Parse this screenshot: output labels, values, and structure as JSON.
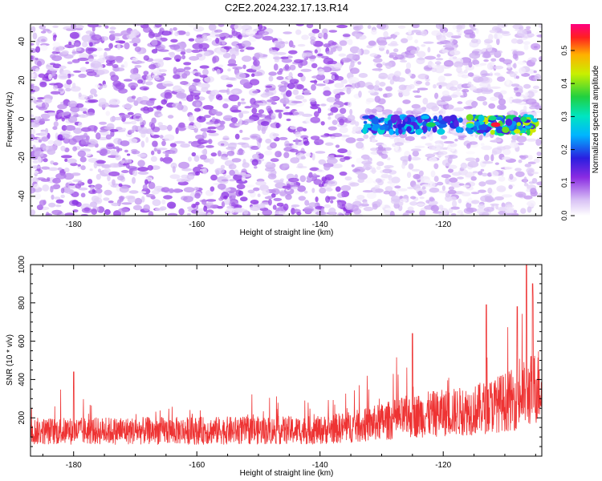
{
  "title": "C2E2.2024.232.17.13.R14",
  "chart_data": [
    {
      "type": "heatmap",
      "xlabel": "Height of straight line (km)",
      "ylabel": "Frequency (Hz)",
      "xlim": [
        -187,
        -104
      ],
      "ylim": [
        -50,
        49
      ],
      "x_ticks": [
        -180,
        -160,
        -140,
        -120
      ],
      "y_ticks": [
        -40,
        -20,
        0,
        20,
        40
      ],
      "colorbar": {
        "label": "Normalized spectral amplitude",
        "range": [
          0,
          0.58
        ],
        "ticks": [
          0.0,
          0.1,
          0.2,
          0.3,
          0.4,
          0.5
        ]
      },
      "noise_level": 0.1,
      "features": [
        {
          "x_range": [
            -133,
            -117
          ],
          "y_center": -3,
          "peak": 0.35
        },
        {
          "x_range": [
            -116,
            -105
          ],
          "y_center": -3,
          "peak": 0.55
        }
      ]
    },
    {
      "type": "line",
      "xlabel": "Height of straight line (km)",
      "ylabel": "SNR (10 * v/v)",
      "xlim": [
        -187,
        -104
      ],
      "ylim": [
        0,
        1000
      ],
      "x_ticks": [
        -180,
        -160,
        -140,
        -120
      ],
      "y_ticks": [
        200,
        400,
        600,
        800,
        1000
      ],
      "color": "#ee3333",
      "baseline": [
        [
          -187,
          130
        ],
        [
          -140,
          135
        ],
        [
          -133,
          160
        ],
        [
          -125,
          210
        ],
        [
          -115,
          240
        ],
        [
          -108,
          300
        ],
        [
          -104,
          380
        ]
      ],
      "peaks": [
        [
          -180,
          440
        ],
        [
          -125,
          640
        ],
        [
          -113,
          790
        ],
        [
          -108,
          780
        ],
        [
          -106.5,
          1000
        ],
        [
          -105.5,
          900
        ]
      ]
    }
  ]
}
